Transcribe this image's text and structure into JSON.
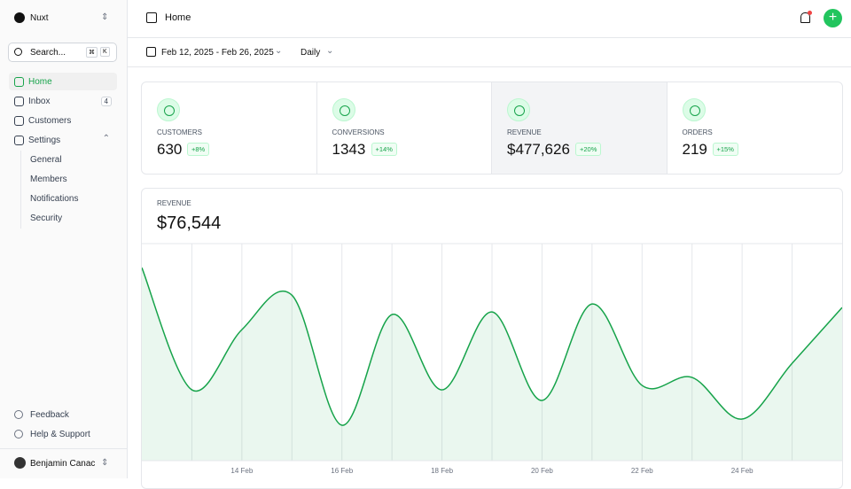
{
  "sidebar": {
    "workspace": "Nuxt",
    "search": "Search...",
    "shortcut": [
      "⌘",
      "K"
    ],
    "nav": [
      {
        "label": "Home"
      },
      {
        "label": "Inbox",
        "badge": "4"
      },
      {
        "label": "Customers"
      },
      {
        "label": "Settings",
        "children": [
          "General",
          "Members",
          "Notifications",
          "Security"
        ]
      }
    ],
    "footer_links": [
      "Feedback",
      "Help & Support"
    ],
    "user": "Benjamin Canac"
  },
  "header": {
    "title": "Home"
  },
  "toolbar": {
    "date_range": "Feb 12, 2025 - Feb 26, 2025",
    "period": "Daily"
  },
  "stats": [
    {
      "label": "CUSTOMERS",
      "value": "630",
      "change": "+8%"
    },
    {
      "label": "CONVERSIONS",
      "value": "1343",
      "change": "+14%"
    },
    {
      "label": "REVENUE",
      "value": "$477,626",
      "change": "+20%"
    },
    {
      "label": "ORDERS",
      "value": "219",
      "change": "+15%"
    }
  ],
  "revenue": {
    "label": "REVENUE",
    "total": "$76,544"
  },
  "chart_data": {
    "type": "area",
    "color": "#16a34a",
    "categories": [
      null,
      null,
      "14 Feb",
      null,
      "16 Feb",
      null,
      "18 Feb",
      null,
      "20 Feb",
      null,
      "22 Feb",
      null,
      "24 Feb",
      null,
      null
    ],
    "values": [
      9069,
      3328,
      6157,
      7779,
      1664,
      6864,
      3328,
      6989,
      2829,
      7363,
      3536,
      3910,
      1955,
      4576,
      7197
    ],
    "ylim": [
      0,
      10200
    ],
    "grid": true
  }
}
